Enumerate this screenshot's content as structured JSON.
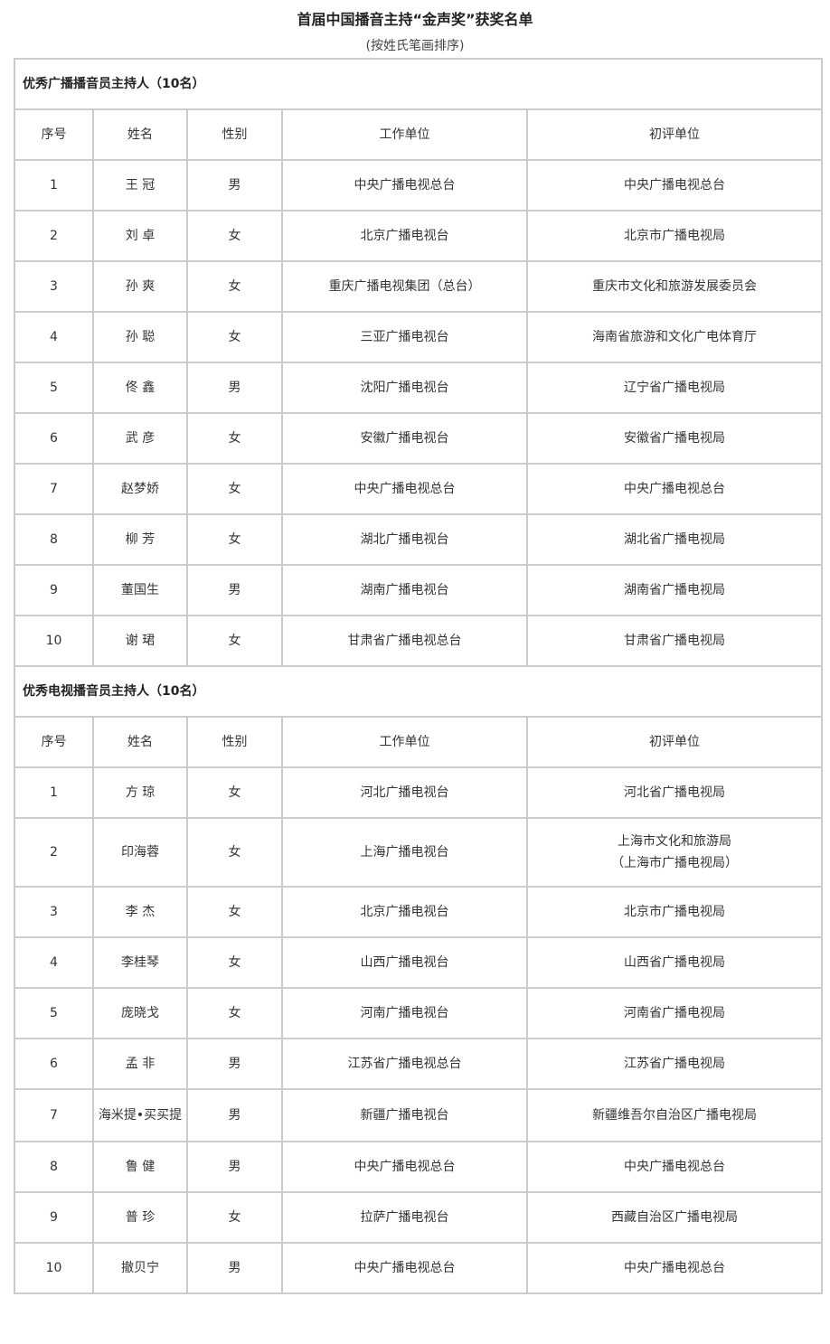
{
  "title": "首届中国播音主持“金声奖”获奖名单",
  "subtitle": "(按姓氏笔画排序)",
  "columns": [
    "序号",
    "姓名",
    "性别",
    "工作单位",
    "初评单位"
  ],
  "sections": [
    {
      "heading": "优秀广播播音员主持人（10名）",
      "rows": [
        [
          "1",
          "王 冠",
          "男",
          "中央广播电视总台",
          "中央广播电视总台"
        ],
        [
          "2",
          "刘 卓",
          "女",
          "北京广播电视台",
          "北京市广播电视局"
        ],
        [
          "3",
          "孙 爽",
          "女",
          "重庆广播电视集团（总台）",
          "重庆市文化和旅游发展委员会"
        ],
        [
          "4",
          "孙 聪",
          "女",
          "三亚广播电视台",
          "海南省旅游和文化广电体育厅"
        ],
        [
          "5",
          "佟 鑫",
          "男",
          "沈阳广播电视台",
          "辽宁省广播电视局"
        ],
        [
          "6",
          "武 彦",
          "女",
          "安徽广播电视台",
          "安徽省广播电视局"
        ],
        [
          "7",
          "赵梦娇",
          "女",
          "中央广播电视总台",
          "中央广播电视总台"
        ],
        [
          "8",
          "柳 芳",
          "女",
          "湖北广播电视台",
          "湖北省广播电视局"
        ],
        [
          "9",
          "董国生",
          "男",
          "湖南广播电视台",
          "湖南省广播电视局"
        ],
        [
          "10",
          "谢 珺",
          "女",
          "甘肃省广播电视总台",
          "甘肃省广播电视局"
        ]
      ]
    },
    {
      "heading": "优秀电视播音员主持人（10名）",
      "rows": [
        [
          "1",
          "方 琼",
          "女",
          "河北广播电视台",
          "河北省广播电视局"
        ],
        [
          "2",
          "印海蓉",
          "女",
          "上海广播电视台",
          "上海市文化和旅游局\n（上海市广播电视局）"
        ],
        [
          "3",
          "李 杰",
          "女",
          "北京广播电视台",
          "北京市广播电视局"
        ],
        [
          "4",
          "李桂琴",
          "女",
          "山西广播电视台",
          "山西省广播电视局"
        ],
        [
          "5",
          "庞晓戈",
          "女",
          "河南广播电视台",
          "河南省广播电视局"
        ],
        [
          "6",
          "孟 非",
          "男",
          "江苏省广播电视总台",
          "江苏省广播电视局"
        ],
        [
          "7",
          "海米提•买买提",
          "男",
          "新疆广播电视台",
          "新疆维吾尔自治区广播电视局"
        ],
        [
          "8",
          "鲁 健",
          "男",
          "中央广播电视总台",
          "中央广播电视总台"
        ],
        [
          "9",
          "普 珍",
          "女",
          "拉萨广播电视台",
          "西藏自治区广播电视局"
        ],
        [
          "10",
          "撤贝宁",
          "男",
          "中央广播电视总台",
          "中央广播电视总台"
        ]
      ]
    }
  ]
}
